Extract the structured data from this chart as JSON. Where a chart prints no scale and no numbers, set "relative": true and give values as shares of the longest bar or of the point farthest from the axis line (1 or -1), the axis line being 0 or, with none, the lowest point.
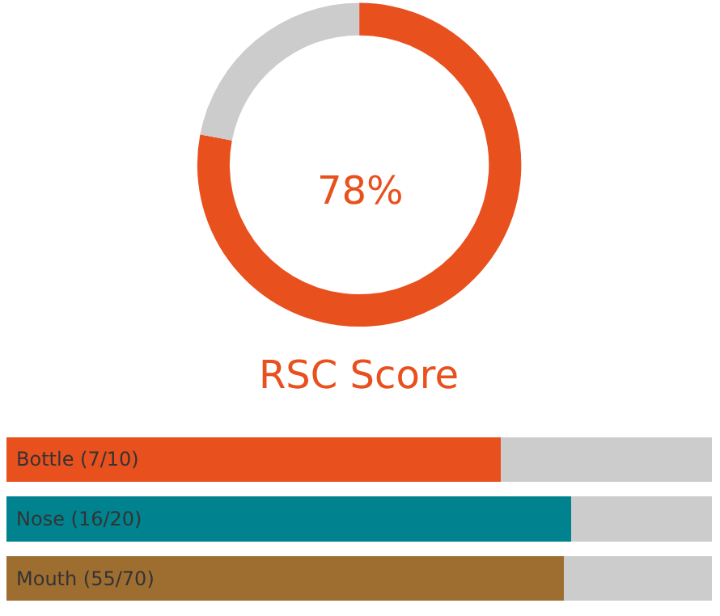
{
  "chart_data": [
    {
      "type": "donut",
      "title": "RSC Score",
      "categories": [
        null,
        null
      ],
      "values": [
        78,
        22
      ],
      "colors": [
        "#e8501e",
        "#cccccc"
      ],
      "annotations": [
        "78%"
      ]
    },
    {
      "type": "bar",
      "orientation": "horizontal",
      "stacked": true,
      "relative": true,
      "categories": [
        "Bottle (7/10)",
        "Nose (16/20)",
        "Mouth (55/70)"
      ],
      "series": [
        {
          "colors": [
            "#e8501e",
            "#00838f",
            "#9e6e31"
          ],
          "values": [
            0.7,
            0.8,
            0.79
          ]
        },
        {
          "color": "#cccccc",
          "values": [
            0.3,
            0.2,
            0.21
          ]
        }
      ]
    }
  ]
}
